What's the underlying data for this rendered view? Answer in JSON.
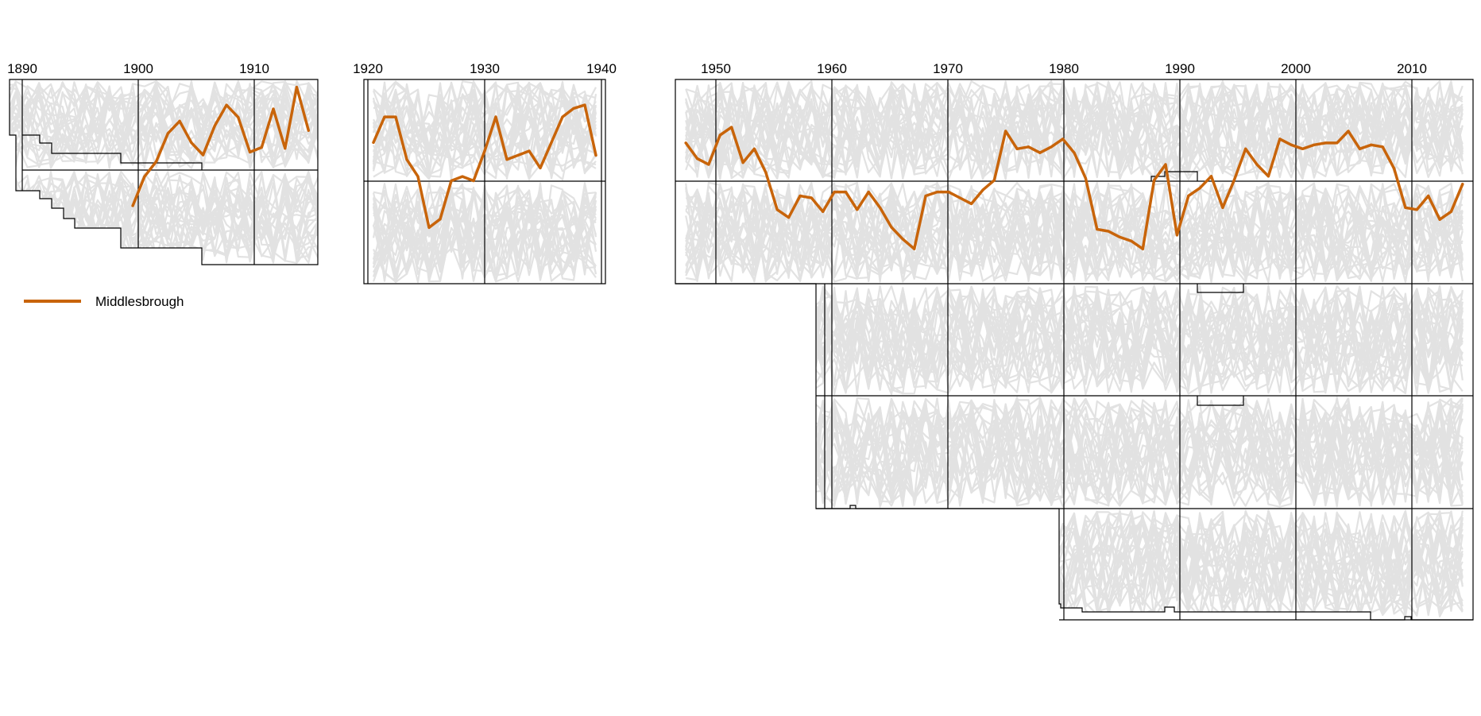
{
  "chart_data": [
    {
      "type": "line",
      "panel": "1890-1915",
      "x_ticks": [
        "1890",
        "1900",
        "1910"
      ],
      "xlim": [
        1889,
        1916
      ],
      "ylim": [
        1,
        20
      ],
      "highlight_series": {
        "name": "Middlesbrough",
        "color": "#C8640A",
        "x": [
          1900,
          1901,
          1902,
          1903,
          1904,
          1905,
          1906,
          1907,
          1908,
          1909,
          1910,
          1911,
          1912,
          1913,
          1914,
          1915
        ],
        "y": [
          14,
          10.9,
          9.3,
          6.3,
          5.0,
          7.3,
          8.6,
          5.5,
          3.3,
          4.6,
          8.3,
          7.8,
          3.7,
          7.9,
          1.4,
          6.0
        ]
      }
    },
    {
      "type": "line",
      "panel": "1920-1939",
      "x_ticks": [
        "1920",
        "1930",
        "1940"
      ],
      "xlim": [
        1919.5,
        1940.5
      ],
      "ylim": [
        1,
        22
      ],
      "highlight_series": {
        "name": "Middlesbrough",
        "color": "#C8640A",
        "x": [
          1920,
          1921,
          1922,
          1923,
          1924,
          1925,
          1926,
          1927,
          1928,
          1929,
          1930,
          1931,
          1932,
          1933,
          1934,
          1935,
          1936,
          1937,
          1938,
          1939,
          1940
        ],
        "y": [
          7,
          4,
          4,
          9,
          11,
          17,
          16,
          11.5,
          11,
          11.5,
          8,
          4,
          9,
          8.5,
          8,
          10,
          7,
          4,
          3,
          2.6,
          8.5
        ]
      }
    },
    {
      "type": "line",
      "panel": "1946-2015",
      "x_ticks": [
        "1950",
        "1960",
        "1970",
        "1980",
        "1990",
        "2000",
        "2010"
      ],
      "xlim": [
        1946.5,
        2015.5
      ],
      "ylim": [
        1,
        50
      ],
      "highlight_series": {
        "name": "Middlesbrough",
        "color": "#C8640A",
        "x": [
          1947,
          1948,
          1949,
          1950,
          1951,
          1952,
          1953,
          1954,
          1955,
          1956,
          1957,
          1958,
          1959,
          1960,
          1961,
          1962,
          1963,
          1964,
          1965,
          1966,
          1967,
          1968,
          1969,
          1970,
          1971,
          1972,
          1973,
          1974,
          1975,
          1976,
          1977,
          1978,
          1979,
          1980,
          1981,
          1982,
          1983,
          1984,
          1985,
          1986,
          1987,
          1988,
          1989,
          1990,
          1991,
          1992,
          1993,
          1994,
          1995,
          1996,
          1997,
          1998,
          1999,
          2000,
          2001,
          2002,
          2003,
          2004,
          2005,
          2006,
          2007,
          2008,
          2009,
          2010,
          2011,
          2012,
          2013,
          2014,
          2015
        ],
        "y": [
          11.5,
          15.5,
          17,
          9.5,
          7.5,
          16.5,
          13,
          19,
          28.5,
          30.5,
          25,
          25.5,
          29,
          24,
          24,
          28.5,
          24,
          28,
          33,
          36,
          38.5,
          25,
          24,
          24,
          25.5,
          27,
          23.5,
          21,
          8.5,
          13,
          12.5,
          14,
          12.5,
          10.5,
          14,
          20.5,
          33.5,
          34,
          35.5,
          36.5,
          38.5,
          21,
          17,
          35,
          25,
          23,
          20,
          28,
          21,
          13,
          17,
          20,
          10.5,
          12,
          13,
          12,
          11.5,
          11.5,
          8.5,
          13,
          12,
          12.5,
          18,
          28,
          28.5,
          25,
          31,
          29,
          22
        ]
      }
    }
  ],
  "legend": {
    "label": "Middlesbrough",
    "color": "#C8640A"
  },
  "colors": {
    "background_lines": "#E2E2E2",
    "frame": "#000000"
  }
}
